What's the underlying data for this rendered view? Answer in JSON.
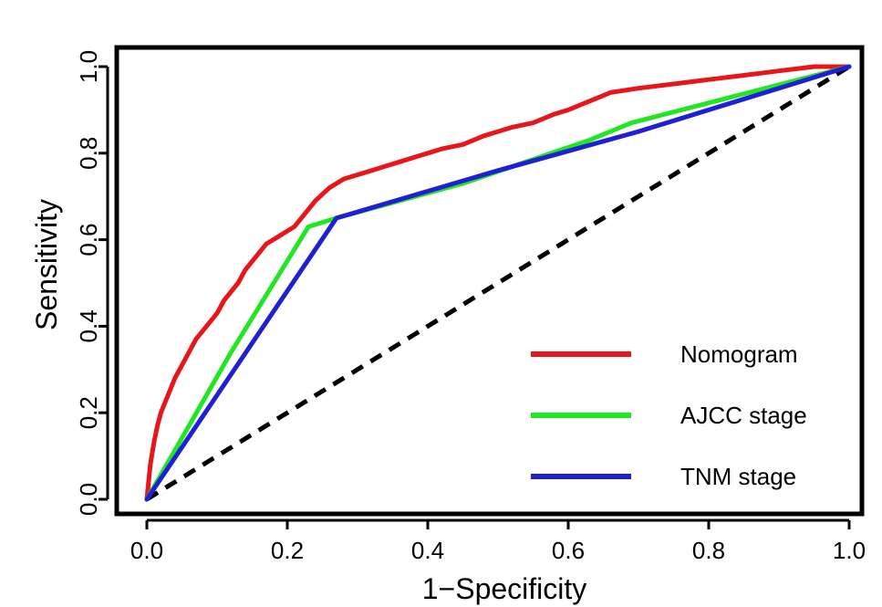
{
  "chart_data": {
    "type": "line",
    "title": "",
    "xlabel": "1−Specificity",
    "ylabel": "Sensitivity",
    "xlim": [
      0,
      1
    ],
    "ylim": [
      0,
      1
    ],
    "xticks": [
      "0.0",
      "0.2",
      "0.4",
      "0.6",
      "0.8",
      "1.0"
    ],
    "yticks": [
      "0.0",
      "0.2",
      "0.4",
      "0.6",
      "0.8",
      "1.0"
    ],
    "grid": false,
    "legend_position": "bottom-right",
    "series": [
      {
        "name": "Nomogram",
        "color": "#e8161b",
        "x": [
          0,
          0.005,
          0.01,
          0.015,
          0.02,
          0.03,
          0.04,
          0.05,
          0.06,
          0.07,
          0.08,
          0.09,
          0.1,
          0.11,
          0.12,
          0.13,
          0.14,
          0.15,
          0.16,
          0.17,
          0.18,
          0.19,
          0.2,
          0.21,
          0.22,
          0.23,
          0.24,
          0.26,
          0.28,
          0.3,
          0.32,
          0.34,
          0.36,
          0.38,
          0.4,
          0.42,
          0.45,
          0.48,
          0.5,
          0.52,
          0.55,
          0.58,
          0.6,
          0.63,
          0.66,
          0.7,
          0.75,
          0.8,
          0.85,
          0.9,
          0.95,
          1.0
        ],
        "y": [
          0,
          0.08,
          0.13,
          0.17,
          0.2,
          0.24,
          0.28,
          0.31,
          0.34,
          0.37,
          0.39,
          0.41,
          0.43,
          0.46,
          0.48,
          0.5,
          0.53,
          0.55,
          0.57,
          0.59,
          0.6,
          0.61,
          0.62,
          0.63,
          0.65,
          0.67,
          0.69,
          0.72,
          0.74,
          0.75,
          0.76,
          0.77,
          0.78,
          0.79,
          0.8,
          0.81,
          0.82,
          0.84,
          0.85,
          0.86,
          0.87,
          0.89,
          0.9,
          0.92,
          0.94,
          0.95,
          0.96,
          0.97,
          0.98,
          0.99,
          1.0,
          1.0
        ]
      },
      {
        "name": "AJCC stage",
        "color": "#22e622",
        "x": [
          0,
          0.12,
          0.23,
          0.27,
          0.45,
          0.63,
          0.69,
          1.0
        ],
        "y": [
          0,
          0.34,
          0.63,
          0.65,
          0.73,
          0.83,
          0.87,
          1.0
        ]
      },
      {
        "name": "TNM stage",
        "color": "#1f1fd6",
        "x": [
          0,
          0.27,
          0.5,
          0.7,
          1.0
        ],
        "y": [
          0,
          0.65,
          0.76,
          0.85,
          1.0
        ]
      },
      {
        "name": "",
        "color": "#000000",
        "dashed": true,
        "x": [
          0,
          1
        ],
        "y": [
          0,
          1
        ]
      }
    ]
  }
}
